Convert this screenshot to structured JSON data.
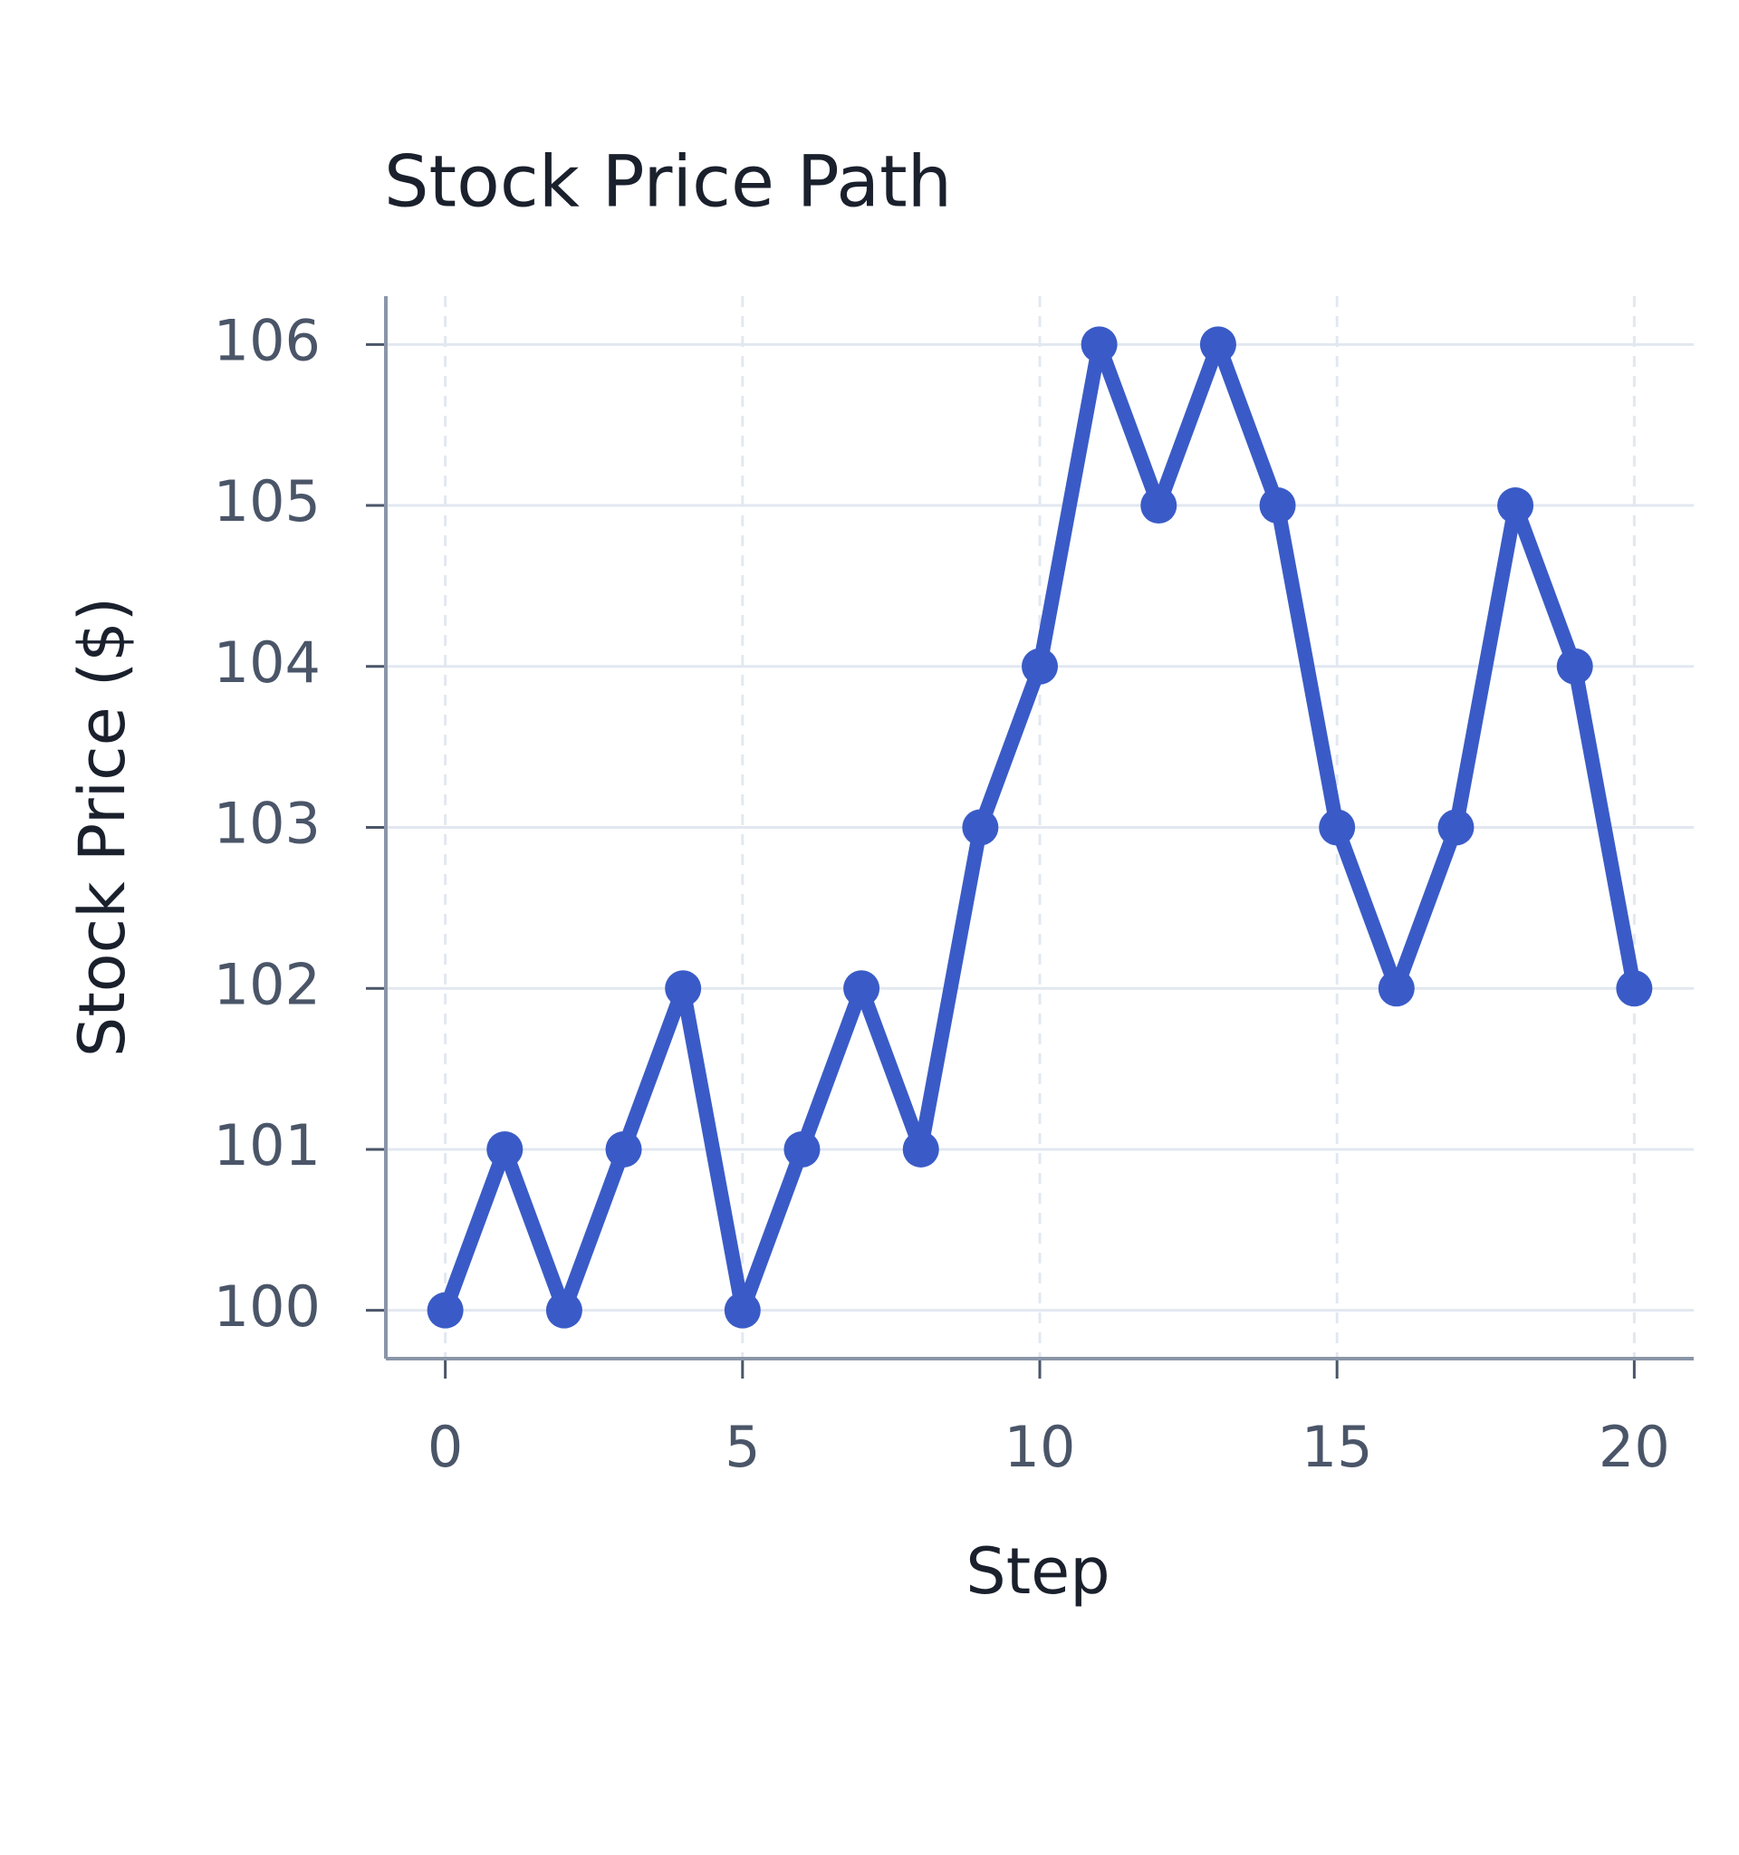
{
  "chart_data": {
    "type": "line",
    "title": "Stock Price Path",
    "x_label": "Step",
    "y_label": "Stock Price ($)",
    "x": [
      0,
      1,
      2,
      3,
      4,
      5,
      6,
      7,
      8,
      9,
      10,
      11,
      12,
      13,
      14,
      15,
      16,
      17,
      18,
      19,
      20
    ],
    "series": [
      {
        "name": "Stock Price",
        "color": "#3a5bc7",
        "values": [
          100,
          101,
          100,
          101,
          102,
          100,
          101,
          102,
          101,
          103,
          104,
          106,
          105,
          106,
          105,
          103,
          102,
          103,
          105,
          104,
          102
        ]
      }
    ],
    "xlim": [
      -1,
      21
    ],
    "xticks": [
      0,
      5,
      10,
      15,
      20
    ],
    "ylim": [
      99.7,
      106.3
    ],
    "yticks": [
      100,
      101,
      102,
      103,
      104,
      105,
      106
    ],
    "grid": true
  }
}
